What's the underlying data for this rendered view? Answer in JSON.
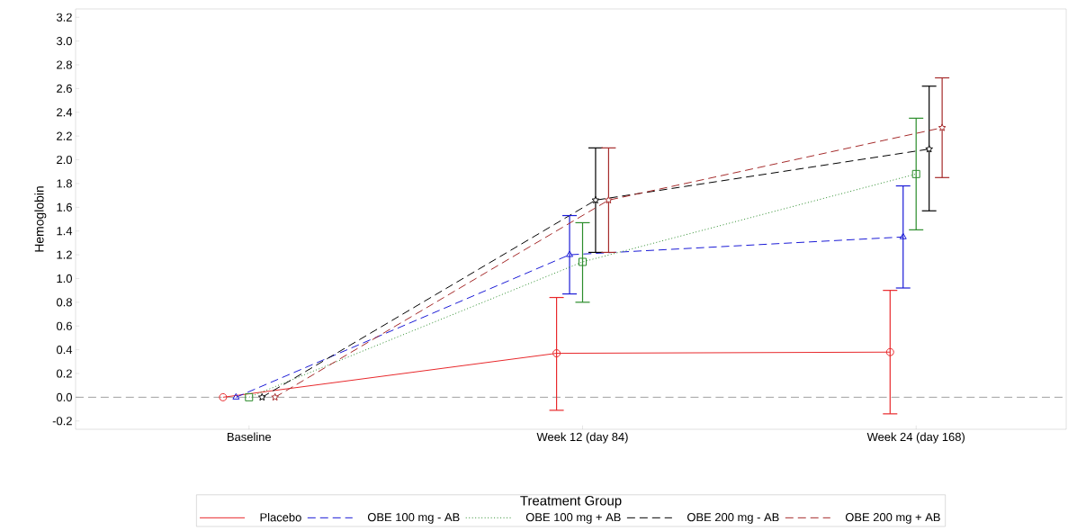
{
  "chart_data": {
    "type": "line",
    "ylabel": "Hemoglobin",
    "legend_title": "Treatment Group",
    "legend": "bottom",
    "categories": [
      "Baseline",
      "Week 12 (day 84)",
      "Week 24 (day 168)"
    ],
    "ylim": [
      -0.27,
      3.27
    ],
    "yticks": [
      {
        "value": -0.2,
        "label": "-0.2"
      },
      {
        "value": 0,
        "label": "0.0"
      },
      {
        "value": 0.2,
        "label": "0.2"
      },
      {
        "value": 0.4,
        "label": "0.4"
      },
      {
        "value": 0.6,
        "label": "0.6"
      },
      {
        "value": 0.8,
        "label": "0.8"
      },
      {
        "value": 1,
        "label": "1.0"
      },
      {
        "value": 1.2,
        "label": "1.2"
      },
      {
        "value": 1.4,
        "label": "1.4"
      },
      {
        "value": 1.6,
        "label": "1.6"
      },
      {
        "value": 1.8,
        "label": "1.8"
      },
      {
        "value": 2,
        "label": "2.0"
      },
      {
        "value": 2.2,
        "label": "2.2"
      },
      {
        "value": 2.4,
        "label": "2.4"
      },
      {
        "value": 2.6,
        "label": "2.6"
      },
      {
        "value": 2.8,
        "label": "2.8"
      },
      {
        "value": 3,
        "label": "3.0"
      },
      {
        "value": 3.2,
        "label": "3.2"
      }
    ],
    "grid": false,
    "ref_lines": [
      {
        "axis": "y",
        "value": 0,
        "color": "#a0a0a0",
        "line_style": "dashed"
      }
    ],
    "series": [
      {
        "name": "Placebo",
        "color": "#e8282b",
        "marker": "circle",
        "line_style": "solid",
        "values": [
          0,
          0.37,
          0.38
        ],
        "errors": [
          null,
          [
            -0.11,
            0.84
          ],
          [
            -0.14,
            0.9
          ]
        ]
      },
      {
        "name": "OBE 100 mg - AB",
        "color": "#1a1ad6",
        "marker": "triangle",
        "line_style": "dashed",
        "values": [
          0,
          1.2,
          1.35
        ],
        "errors": [
          null,
          [
            0.87,
            1.53
          ],
          [
            0.92,
            1.78
          ]
        ]
      },
      {
        "name": "OBE 100 mg + AB",
        "color": "#2a8c2a",
        "marker": "square",
        "line_style": "dotted",
        "values": [
          0,
          1.14,
          1.88
        ],
        "errors": [
          null,
          [
            0.8,
            1.47
          ],
          [
            1.41,
            2.35
          ]
        ]
      },
      {
        "name": "OBE 200 mg - AB",
        "color": "#000000",
        "marker": "star",
        "line_style": "dashed",
        "values": [
          0,
          1.66,
          2.09
        ],
        "errors": [
          null,
          [
            1.22,
            2.1
          ],
          [
            1.57,
            2.62
          ]
        ]
      },
      {
        "name": "OBE 200 mg + AB",
        "color": "#a52a2a",
        "marker": "star",
        "line_style": "dashed",
        "values": [
          0,
          1.66,
          2.27
        ],
        "errors": [
          null,
          [
            1.22,
            2.1
          ],
          [
            1.85,
            2.69
          ]
        ]
      }
    ]
  }
}
